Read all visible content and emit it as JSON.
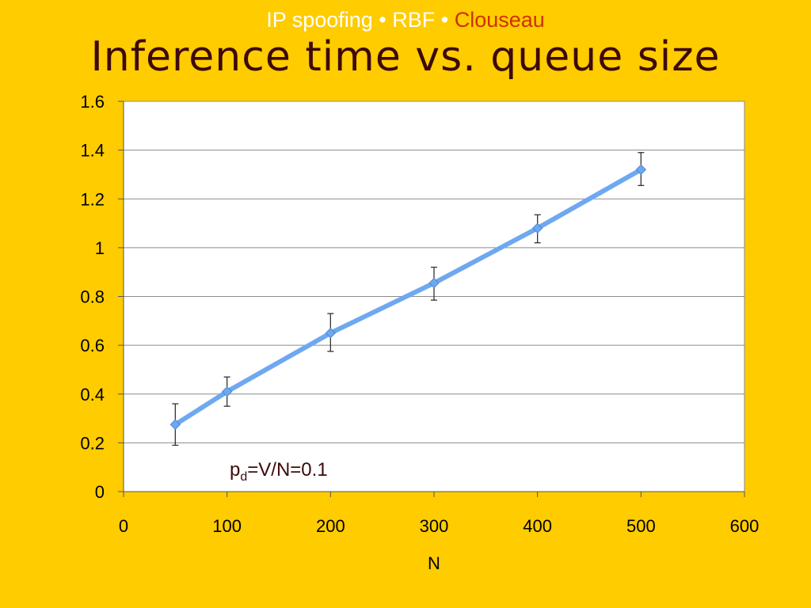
{
  "header": {
    "part1": "IP spoofing",
    "sep1": " • ",
    "part2": "RBF",
    "sep2": " • ",
    "part3": "Clouseau"
  },
  "title": "Inference time vs. queue size",
  "colors": {
    "background": "#FFCC00",
    "header_text": "#FFFFFF",
    "header_accent": "#CC3300",
    "title_text": "#3D0A0A",
    "series_line": "#6EA8F0",
    "plot_area": "#FFFFFF"
  },
  "chart_data": {
    "type": "line",
    "title": "",
    "xlabel": "N",
    "ylabel": "",
    "xlim": [
      0,
      600
    ],
    "ylim": [
      0,
      1.6
    ],
    "xticks": [
      0,
      100,
      200,
      300,
      400,
      500,
      600
    ],
    "xtick_labels": [
      "0",
      "100",
      "200",
      "300",
      "400",
      "500",
      "600"
    ],
    "yticks": [
      0,
      0.2,
      0.4,
      0.6,
      0.8,
      1.0,
      1.2,
      1.4,
      1.6
    ],
    "ytick_labels": [
      "0",
      "0.2",
      "0.4",
      "0.6",
      "0.8",
      "1",
      "1.2",
      "1.4",
      "1.6"
    ],
    "grid": "horizontal",
    "legend": "none",
    "series": [
      {
        "x": [
          50,
          100,
          200,
          300,
          400,
          500
        ],
        "y": [
          0.275,
          0.41,
          0.65,
          0.855,
          1.08,
          1.32
        ],
        "error_low": [
          0.19,
          0.35,
          0.575,
          0.785,
          1.02,
          1.255
        ],
        "error_high": [
          0.36,
          0.47,
          0.73,
          0.92,
          1.135,
          1.39
        ]
      }
    ],
    "annotation": {
      "base": "p",
      "sub": "d",
      "rest": "=V/N=0.1"
    }
  }
}
